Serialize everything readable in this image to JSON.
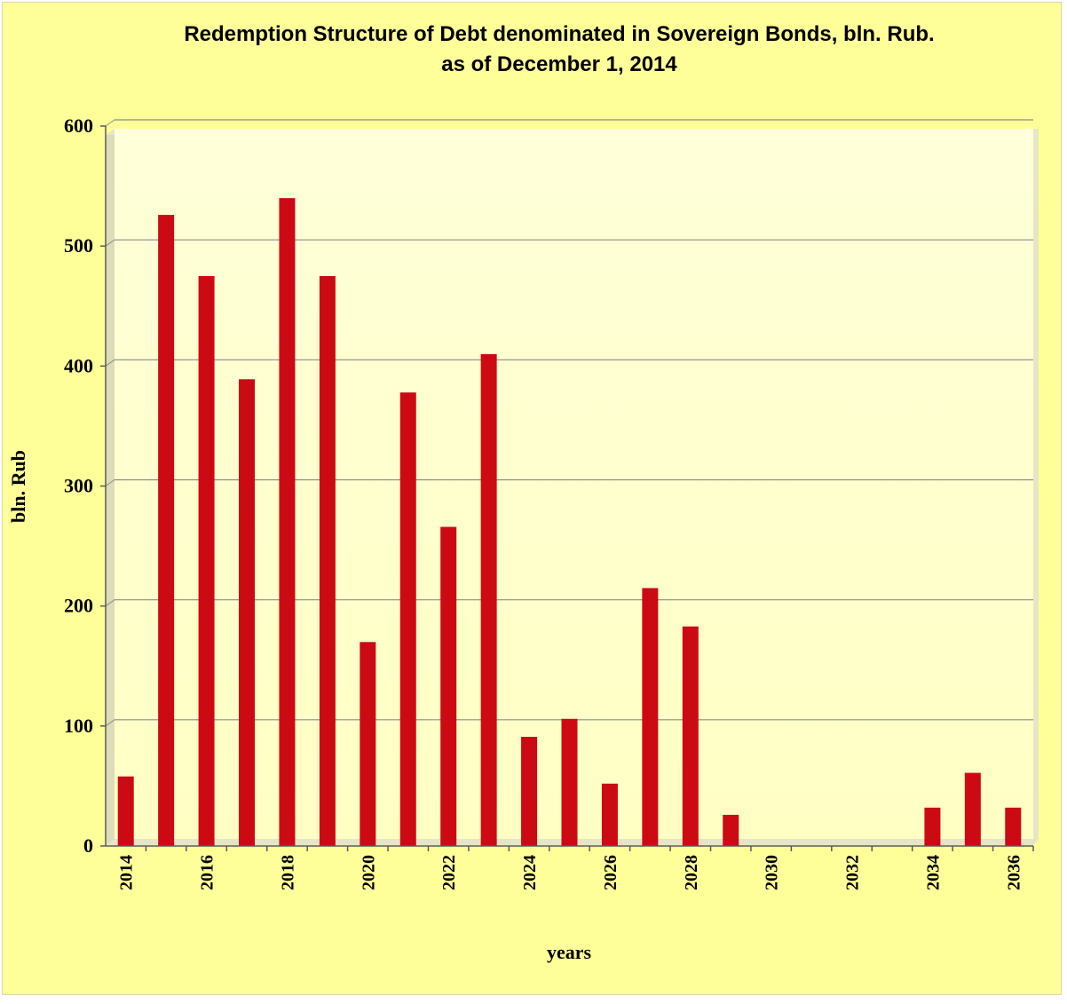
{
  "chart_data": {
    "type": "bar",
    "title_line1": "Redemption Structure of Debt denominated in Sovereign Bonds, bln. Rub.",
    "title_line2": "as of  December 1, 2014",
    "xlabel": "years",
    "ylabel": "bln. Rub",
    "ylim": [
      0,
      600
    ],
    "yticks": [
      0,
      100,
      200,
      300,
      400,
      500,
      600
    ],
    "grid": true,
    "categories": [
      "2014",
      "2015",
      "2016",
      "2017",
      "2018",
      "2019",
      "2020",
      "2021",
      "2022",
      "2023",
      "2024",
      "2025",
      "2026",
      "2027",
      "2028",
      "2029",
      "2030",
      "2031",
      "2032",
      "2033",
      "2034",
      "2035",
      "2036"
    ],
    "x_tick_labels": [
      "2014",
      "",
      "2016",
      "",
      "2018",
      "",
      "2020",
      "",
      "2022",
      "",
      "2024",
      "",
      "2026",
      "",
      "2028",
      "",
      "2030",
      "",
      "2032",
      "",
      "2034",
      "",
      "2036"
    ],
    "values": [
      55,
      523,
      472,
      386,
      537,
      472,
      167,
      375,
      263,
      407,
      88,
      103,
      49,
      212,
      180,
      23,
      0,
      0,
      0,
      0,
      29,
      58,
      29
    ],
    "colors": {
      "bar": "#cc0a14",
      "plot_background": "#ffffcc",
      "chart_background": "#ffff99",
      "grid": "#8c8c8c"
    }
  }
}
